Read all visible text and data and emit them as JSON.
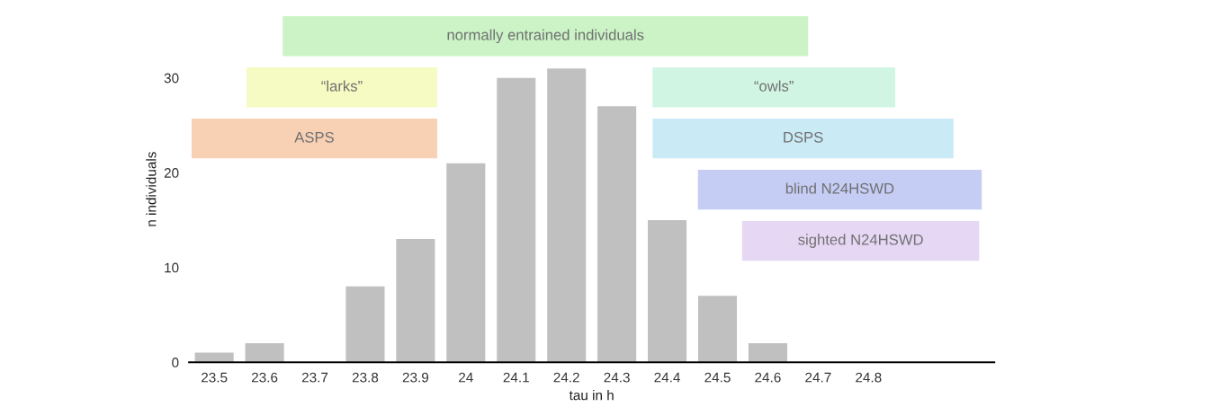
{
  "chart_data": {
    "type": "bar",
    "xlabel": "tau in h",
    "ylabel": "n individuals",
    "x": [
      23.5,
      23.6,
      23.7,
      23.8,
      23.9,
      24.0,
      24.1,
      24.2,
      24.3,
      24.4,
      24.5,
      24.6,
      24.7,
      24.8
    ],
    "values": [
      1,
      2,
      0,
      8,
      13,
      21,
      30,
      31,
      27,
      15,
      7,
      2,
      0,
      0
    ],
    "color": "#c0c0c0",
    "xlim": [
      23.45,
      25.05
    ],
    "xticks": [
      23.5,
      23.6,
      23.7,
      23.8,
      23.9,
      {
        "value": 24.0,
        "label": "24"
      },
      24.1,
      24.2,
      24.3,
      24.4,
      24.5,
      24.6,
      24.7,
      24.8
    ],
    "ylim": [
      0,
      36.5
    ],
    "yticks": [
      0,
      10,
      20,
      30
    ],
    "grid": false,
    "bands": [
      {
        "axis": "x",
        "from": 23.636,
        "to": 24.68,
        "label": "normally entrained individuals",
        "color": "#a8eba0"
      },
      {
        "axis": "x",
        "from": 23.564,
        "to": 23.943,
        "label": "“larks”",
        "color": "#eef99a"
      },
      {
        "axis": "x",
        "from": 23.455,
        "to": 23.943,
        "label": "ASPS",
        "color": "#f4b384"
      },
      {
        "axis": "x",
        "from": 24.371,
        "to": 24.853,
        "label": "“owls”",
        "color": "#b0efd0"
      },
      {
        "axis": "x",
        "from": 24.371,
        "to": 24.969,
        "label": "DSPS",
        "color": "#a6dcf0"
      },
      {
        "axis": "x",
        "from": 24.461,
        "to": 25.025,
        "label": "blind N24HSWD",
        "color": "#9fabef"
      },
      {
        "axis": "x",
        "from": 24.549,
        "to": 25.02,
        "label": "sighted N24HSWD",
        "color": "#d6bdef"
      }
    ]
  }
}
